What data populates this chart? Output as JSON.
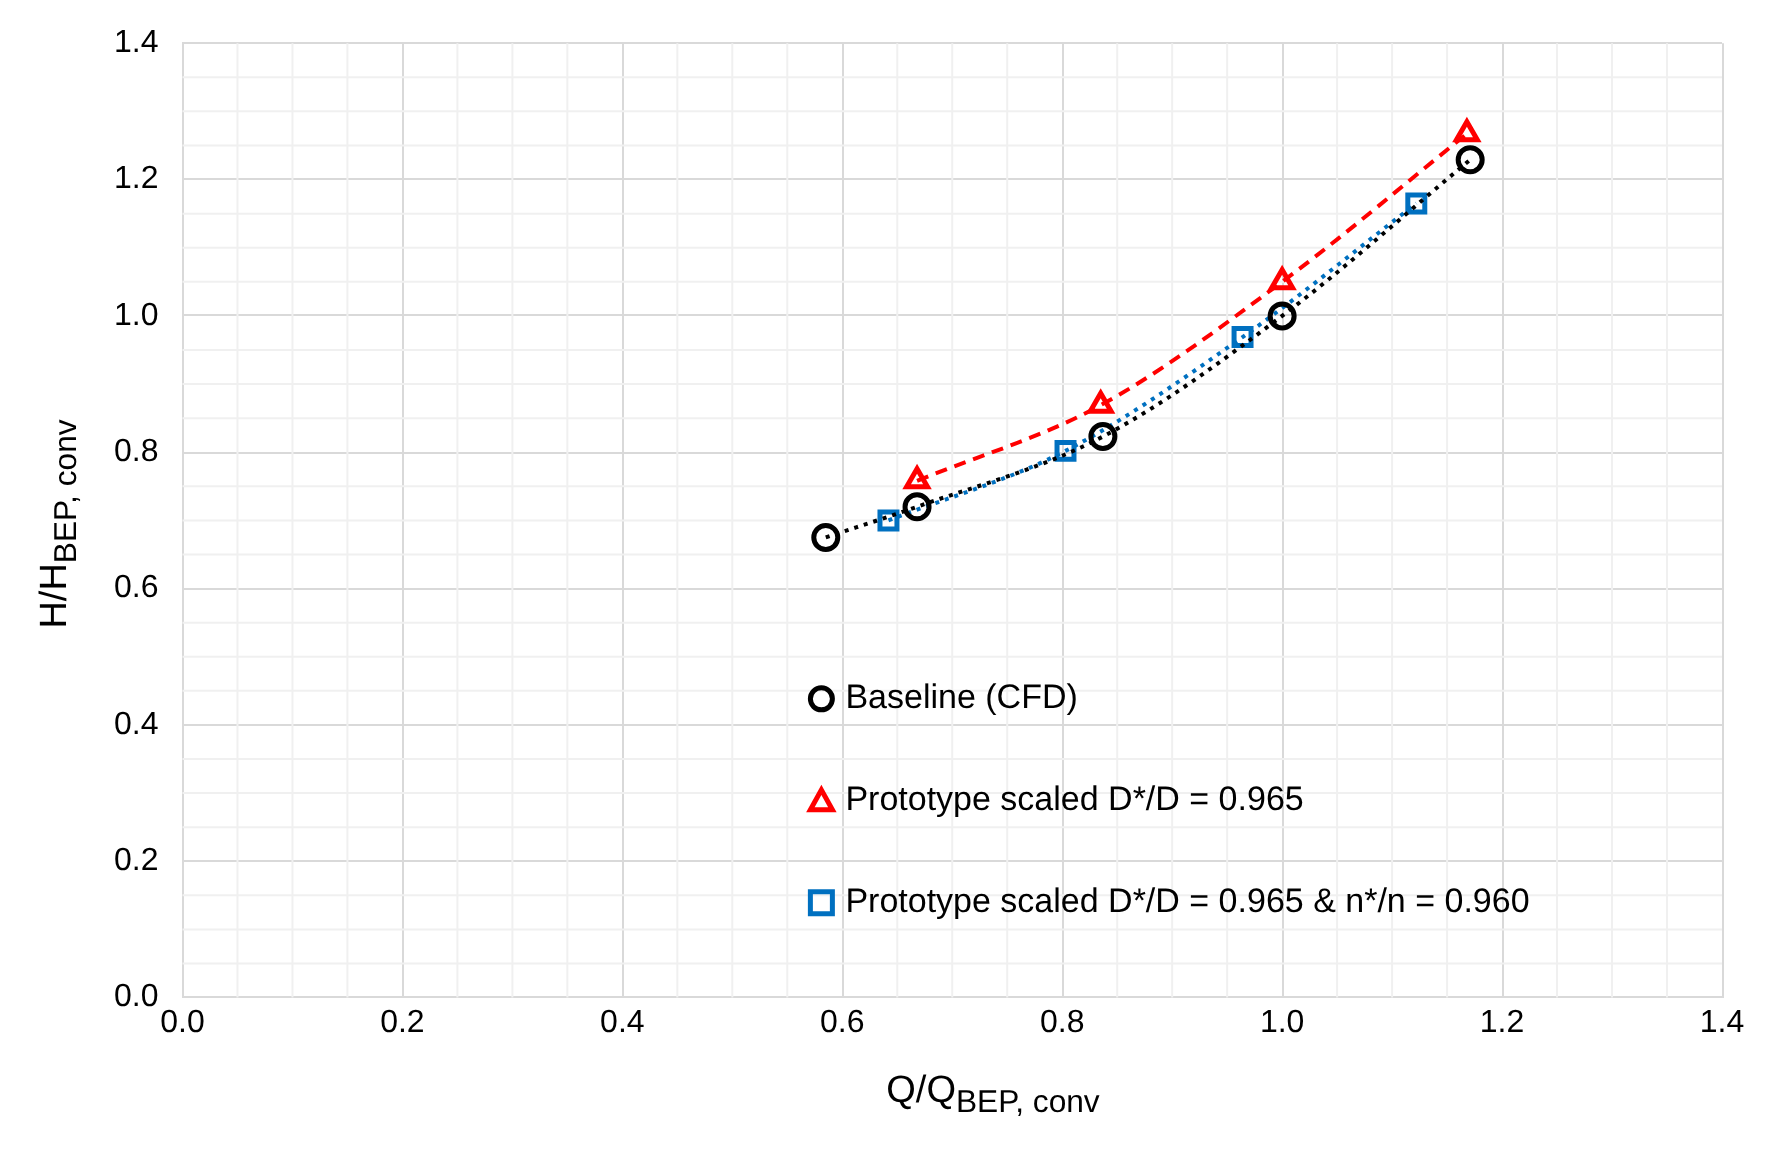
{
  "chart_data": {
    "type": "line",
    "xlabel": "Q/Q$_{BEP, conv}$",
    "ylabel": "H/H$_{BEP, conv}$",
    "xlim": [
      0,
      1.4
    ],
    "xticks": [
      {
        "value": 0,
        "label": "0.0"
      },
      {
        "value": 0.2,
        "label": "0.2"
      },
      {
        "value": 0.4,
        "label": "0.4"
      },
      {
        "value": 0.6,
        "label": "0.6"
      },
      {
        "value": 0.8,
        "label": "0.8"
      },
      {
        "value": 1,
        "label": "1.0"
      },
      {
        "value": 1.2,
        "label": "1.2"
      },
      {
        "value": 1.4,
        "label": "1.4"
      }
    ],
    "ylim": [
      0,
      1.4
    ],
    "yticks": [
      {
        "value": 0,
        "label": "0.0"
      },
      {
        "value": 0.2,
        "label": "0.2"
      },
      {
        "value": 0.4,
        "label": "0.4"
      },
      {
        "value": 0.6,
        "label": "0.6"
      },
      {
        "value": 0.8,
        "label": "0.8"
      },
      {
        "value": 1,
        "label": "1.0"
      },
      {
        "value": 1.2,
        "label": "1.2"
      },
      {
        "value": 1.4,
        "label": "1.4"
      }
    ],
    "grid": true,
    "legend": "bottom",
    "series": [
      {
        "name": "Baseline (CFD)",
        "color": "#000000",
        "marker": "circle",
        "line_style": "dotted",
        "x": [
          0.585,
          0.668,
          0.837,
          1.0,
          1.171
        ],
        "values": [
          0.675,
          0.72,
          0.823,
          1.0,
          1.229
        ]
      },
      {
        "name": "Prototype scaled D*/D = 0.965",
        "color": "#ff0000",
        "marker": "triangle",
        "line_style": "dashed",
        "x": [
          0.668,
          0.835,
          1.0,
          1.168
        ],
        "values": [
          0.758,
          0.869,
          1.05,
          1.267
        ]
      },
      {
        "name": "Prototype scaled D*/D = 0.965 & n*/n = 0.960",
        "color": "#0070c0",
        "marker": "square",
        "line_style": "dotted",
        "x": [
          0.642,
          0.803,
          0.964,
          1.122
        ],
        "values": [
          0.7,
          0.802,
          0.969,
          1.165
        ]
      }
    ]
  }
}
